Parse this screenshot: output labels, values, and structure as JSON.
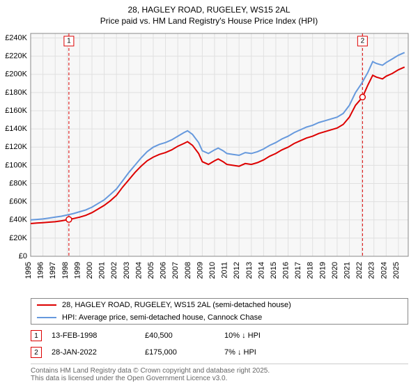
{
  "title": {
    "line1": "28, HAGLEY ROAD, RUGELEY, WS15 2AL",
    "line2": "Price paid vs. HM Land Registry's House Price Index (HPI)"
  },
  "chart": {
    "type": "line",
    "background_color": "#f7f7f7",
    "grid_color": "#e0e0e0",
    "axis_color": "#888888",
    "x": {
      "min": 1995,
      "max": 2025.8,
      "ticks": [
        1995,
        1996,
        1997,
        1998,
        1999,
        2000,
        2001,
        2002,
        2003,
        2004,
        2005,
        2006,
        2007,
        2008,
        2009,
        2010,
        2011,
        2012,
        2013,
        2014,
        2015,
        2016,
        2017,
        2018,
        2019,
        2020,
        2021,
        2022,
        2023,
        2024,
        2025
      ]
    },
    "y": {
      "min": 0,
      "max": 245000,
      "ticks": [
        0,
        20000,
        40000,
        60000,
        80000,
        100000,
        120000,
        140000,
        160000,
        180000,
        200000,
        220000,
        240000
      ],
      "labels": [
        "£0",
        "£20K",
        "£40K",
        "£60K",
        "£80K",
        "£100K",
        "£120K",
        "£140K",
        "£160K",
        "£180K",
        "£200K",
        "£220K",
        "£240K"
      ]
    },
    "series": [
      {
        "name": "price_paid",
        "label": "28, HAGLEY ROAD, RUGELEY, WS15 2AL (semi-detached house)",
        "color": "#dd0000",
        "points": [
          [
            1995.0,
            36000
          ],
          [
            1995.5,
            36500
          ],
          [
            1996.0,
            37000
          ],
          [
            1996.5,
            37500
          ],
          [
            1997.0,
            38000
          ],
          [
            1997.5,
            39000
          ],
          [
            1998.12,
            40500
          ],
          [
            1998.5,
            41500
          ],
          [
            1999.0,
            43000
          ],
          [
            1999.5,
            45000
          ],
          [
            2000.0,
            48000
          ],
          [
            2000.5,
            52000
          ],
          [
            2001.0,
            56000
          ],
          [
            2001.5,
            61000
          ],
          [
            2002.0,
            67000
          ],
          [
            2002.5,
            76000
          ],
          [
            2003.0,
            84000
          ],
          [
            2003.5,
            92000
          ],
          [
            2004.0,
            99000
          ],
          [
            2004.5,
            105000
          ],
          [
            2005.0,
            109000
          ],
          [
            2005.5,
            112000
          ],
          [
            2006.0,
            114000
          ],
          [
            2006.5,
            117000
          ],
          [
            2007.0,
            121000
          ],
          [
            2007.5,
            124000
          ],
          [
            2007.8,
            126000
          ],
          [
            2008.2,
            122000
          ],
          [
            2008.7,
            113000
          ],
          [
            2009.0,
            104000
          ],
          [
            2009.5,
            101000
          ],
          [
            2010.0,
            105000
          ],
          [
            2010.3,
            107000
          ],
          [
            2010.7,
            104000
          ],
          [
            2011.0,
            101000
          ],
          [
            2011.5,
            100000
          ],
          [
            2012.0,
            99000
          ],
          [
            2012.5,
            102000
          ],
          [
            2013.0,
            101000
          ],
          [
            2013.5,
            103000
          ],
          [
            2014.0,
            106000
          ],
          [
            2014.5,
            110000
          ],
          [
            2015.0,
            113000
          ],
          [
            2015.5,
            117000
          ],
          [
            2016.0,
            120000
          ],
          [
            2016.5,
            124000
          ],
          [
            2017.0,
            127000
          ],
          [
            2017.5,
            130000
          ],
          [
            2018.0,
            132000
          ],
          [
            2018.5,
            135000
          ],
          [
            2019.0,
            137000
          ],
          [
            2019.5,
            139000
          ],
          [
            2020.0,
            141000
          ],
          [
            2020.5,
            145000
          ],
          [
            2021.0,
            153000
          ],
          [
            2021.5,
            166000
          ],
          [
            2022.07,
            175000
          ],
          [
            2022.5,
            188000
          ],
          [
            2022.9,
            199000
          ],
          [
            2023.2,
            197000
          ],
          [
            2023.7,
            195000
          ],
          [
            2024.0,
            198000
          ],
          [
            2024.5,
            201000
          ],
          [
            2025.0,
            205000
          ],
          [
            2025.5,
            208000
          ]
        ]
      },
      {
        "name": "hpi",
        "label": "HPI: Average price, semi-detached house, Cannock Chase",
        "color": "#6699dd",
        "points": [
          [
            1995.0,
            40000
          ],
          [
            1995.5,
            40500
          ],
          [
            1996.0,
            41000
          ],
          [
            1996.5,
            42000
          ],
          [
            1997.0,
            43000
          ],
          [
            1997.5,
            44000
          ],
          [
            1998.0,
            45500
          ],
          [
            1998.5,
            47000
          ],
          [
            1999.0,
            49000
          ],
          [
            1999.5,
            51000
          ],
          [
            2000.0,
            54000
          ],
          [
            2000.5,
            58000
          ],
          [
            2001.0,
            62000
          ],
          [
            2001.5,
            68000
          ],
          [
            2002.0,
            74000
          ],
          [
            2002.5,
            83000
          ],
          [
            2003.0,
            92000
          ],
          [
            2003.5,
            100000
          ],
          [
            2004.0,
            108000
          ],
          [
            2004.5,
            115000
          ],
          [
            2005.0,
            120000
          ],
          [
            2005.5,
            123000
          ],
          [
            2006.0,
            125000
          ],
          [
            2006.5,
            128000
          ],
          [
            2007.0,
            132000
          ],
          [
            2007.5,
            136000
          ],
          [
            2007.8,
            138000
          ],
          [
            2008.2,
            134000
          ],
          [
            2008.7,
            125000
          ],
          [
            2009.0,
            116000
          ],
          [
            2009.5,
            113000
          ],
          [
            2010.0,
            117000
          ],
          [
            2010.3,
            119000
          ],
          [
            2010.7,
            116000
          ],
          [
            2011.0,
            113000
          ],
          [
            2011.5,
            112000
          ],
          [
            2012.0,
            111000
          ],
          [
            2012.5,
            114000
          ],
          [
            2013.0,
            113000
          ],
          [
            2013.5,
            115000
          ],
          [
            2014.0,
            118000
          ],
          [
            2014.5,
            122000
          ],
          [
            2015.0,
            125000
          ],
          [
            2015.5,
            129000
          ],
          [
            2016.0,
            132000
          ],
          [
            2016.5,
            136000
          ],
          [
            2017.0,
            139000
          ],
          [
            2017.5,
            142000
          ],
          [
            2018.0,
            144000
          ],
          [
            2018.5,
            147000
          ],
          [
            2019.0,
            149000
          ],
          [
            2019.5,
            151000
          ],
          [
            2020.0,
            153000
          ],
          [
            2020.5,
            157000
          ],
          [
            2021.0,
            166000
          ],
          [
            2021.5,
            180000
          ],
          [
            2022.0,
            190000
          ],
          [
            2022.5,
            202000
          ],
          [
            2022.9,
            214000
          ],
          [
            2023.2,
            212000
          ],
          [
            2023.7,
            210000
          ],
          [
            2024.0,
            213000
          ],
          [
            2024.5,
            217000
          ],
          [
            2025.0,
            221000
          ],
          [
            2025.5,
            224000
          ]
        ]
      }
    ],
    "markers": [
      {
        "id": "1",
        "x": 1998.12,
        "y": 40500,
        "color": "#dd0000",
        "label_y_top": true
      },
      {
        "id": "2",
        "x": 2022.07,
        "y": 175000,
        "color": "#dd0000",
        "label_y_top": true
      }
    ]
  },
  "legend": {
    "items": [
      {
        "color": "#dd0000",
        "label": "28, HAGLEY ROAD, RUGELEY, WS15 2AL (semi-detached house)"
      },
      {
        "color": "#6699dd",
        "label": "HPI: Average price, semi-detached house, Cannock Chase"
      }
    ]
  },
  "transactions": [
    {
      "id": "1",
      "color": "#dd0000",
      "date": "13-FEB-1998",
      "price": "£40,500",
      "diff": "10% ↓ HPI"
    },
    {
      "id": "2",
      "color": "#dd0000",
      "date": "28-JAN-2022",
      "price": "£175,000",
      "diff": "7% ↓ HPI"
    }
  ],
  "footer_note": {
    "line1": "Contains HM Land Registry data © Crown copyright and database right 2025.",
    "line2": "This data is licensed under the Open Government Licence v3.0."
  }
}
